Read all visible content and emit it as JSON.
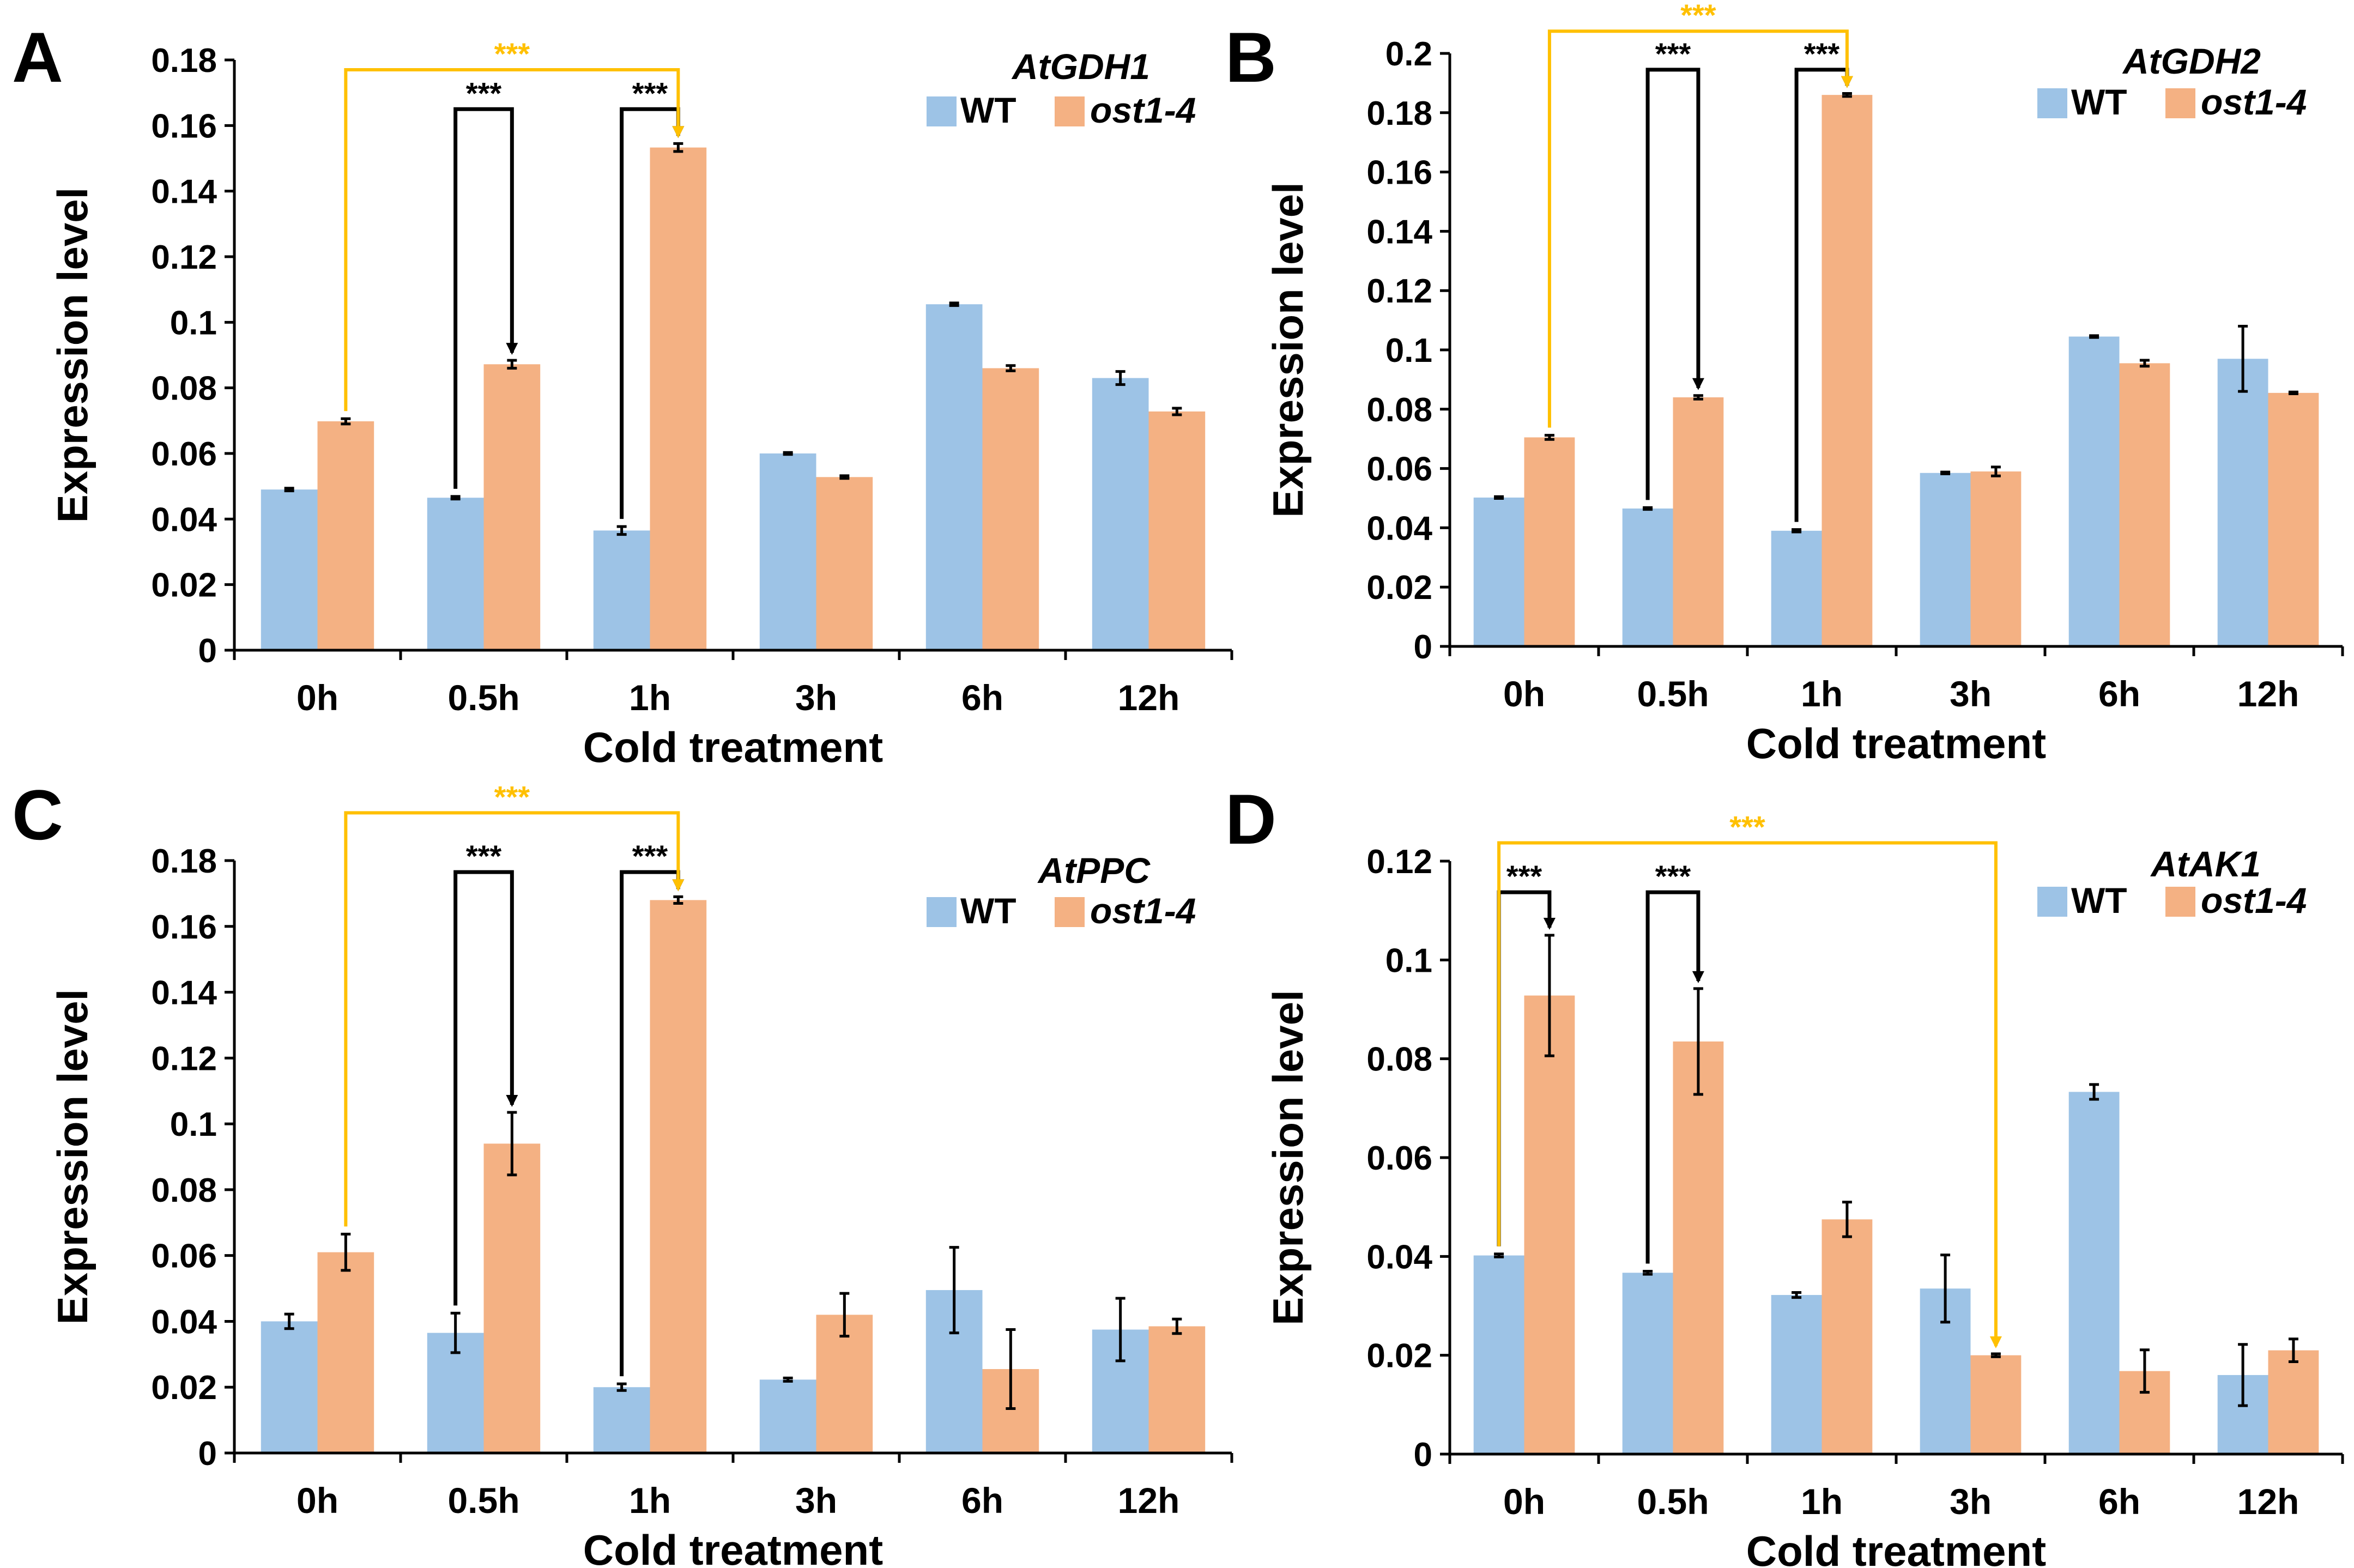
{
  "figure": {
    "colors": {
      "wt": "#9dc3e6",
      "mutant": "#f4b183",
      "comparison_near": "#000000",
      "comparison_far": "#ffc000",
      "axis": "#000000"
    }
  },
  "chart_data": [
    {
      "panel": "A",
      "type": "bar",
      "title": "AtGDH1",
      "xlabel": "Cold treatment",
      "ylabel": "Expression level",
      "categories": [
        "0h",
        "0.5h",
        "1h",
        "3h",
        "6h",
        "12h"
      ],
      "ylim": [
        0,
        0.18
      ],
      "yticks": [
        0,
        0.02,
        0.04,
        0.06,
        0.08,
        0.1,
        0.12,
        0.14,
        0.16,
        0.18
      ],
      "ytick_labels": [
        "0",
        "0.02",
        "0.04",
        "0.06",
        "0.08",
        "0.1",
        "0.12",
        "0.14",
        "0.16",
        "0.18"
      ],
      "series": [
        {
          "name": "WT",
          "values": [
            0.049,
            0.0465,
            0.0365,
            0.06,
            0.1055,
            0.083
          ],
          "errors": [
            0.0004,
            0.0004,
            0.0012,
            0.0003,
            0.0004,
            0.002
          ]
        },
        {
          "name": "ost1-4",
          "values": [
            0.0698,
            0.0872,
            0.1533,
            0.0528,
            0.086,
            0.0728
          ],
          "errors": [
            0.0008,
            0.0012,
            0.0012,
            0.0004,
            0.0008,
            0.001
          ]
        }
      ],
      "legend": {
        "location": "top-right"
      },
      "comparisons": [
        {
          "label": "***",
          "style": "near",
          "from": {
            "category": 1,
            "series": 0
          },
          "to": {
            "category": 1,
            "series": 1
          },
          "top": 0.165
        },
        {
          "label": "***",
          "style": "near",
          "from": {
            "category": 2,
            "series": 0
          },
          "to": {
            "category": 2,
            "series": 1
          },
          "top": 0.165
        },
        {
          "label": "***",
          "style": "far",
          "from": {
            "category": 0,
            "series": 1
          },
          "to": {
            "category": 2,
            "series": 1
          },
          "top": 0.177
        }
      ]
    },
    {
      "panel": "B",
      "type": "bar",
      "title": "AtGDH2",
      "xlabel": "Cold treatment",
      "ylabel": "Expression level",
      "categories": [
        "0h",
        "0.5h",
        "1h",
        "3h",
        "6h",
        "12h"
      ],
      "ylim": [
        0,
        0.2
      ],
      "yticks": [
        0,
        0.02,
        0.04,
        0.06,
        0.08,
        0.1,
        0.12,
        0.14,
        0.16,
        0.18,
        0.2
      ],
      "ytick_labels": [
        "0",
        "0.02",
        "0.04",
        "0.06",
        "0.08",
        "0.1",
        "0.12",
        "0.14",
        "0.16",
        "0.18",
        "0.2"
      ],
      "series": [
        {
          "name": "WT",
          "values": [
            0.0502,
            0.0465,
            0.039,
            0.0585,
            0.1045,
            0.097
          ],
          "errors": [
            0.0003,
            0.0003,
            0.0004,
            0.0003,
            0.0003,
            0.011
          ]
        },
        {
          "name": "ost1-4",
          "values": [
            0.0705,
            0.084,
            0.186,
            0.059,
            0.0955,
            0.0855
          ],
          "errors": [
            0.0007,
            0.0006,
            0.0005,
            0.0015,
            0.001,
            0.0003
          ]
        }
      ],
      "legend": {
        "location": "top-right"
      },
      "comparisons": [
        {
          "label": "***",
          "style": "near",
          "from": {
            "category": 1,
            "series": 0
          },
          "to": {
            "category": 1,
            "series": 1
          },
          "top": 0.1945
        },
        {
          "label": "***",
          "style": "near",
          "from": {
            "category": 2,
            "series": 0
          },
          "to": {
            "category": 2,
            "series": 1
          },
          "top": 0.1945
        },
        {
          "label": "***",
          "style": "far",
          "from": {
            "category": 0,
            "series": 1
          },
          "to": {
            "category": 2,
            "series": 1
          },
          "top": 0.2075
        }
      ]
    },
    {
      "panel": "C",
      "type": "bar",
      "title": "AtPPC",
      "xlabel": "Cold treatment",
      "ylabel": "Expression level",
      "categories": [
        "0h",
        "0.5h",
        "1h",
        "3h",
        "6h",
        "12h"
      ],
      "ylim": [
        0,
        0.18
      ],
      "yticks": [
        0,
        0.02,
        0.04,
        0.06,
        0.08,
        0.1,
        0.12,
        0.14,
        0.16,
        0.18
      ],
      "ytick_labels": [
        "0",
        "0.02",
        "0.04",
        "0.06",
        "0.08",
        "0.1",
        "0.12",
        "0.14",
        "0.16",
        "0.18"
      ],
      "series": [
        {
          "name": "WT",
          "values": [
            0.04,
            0.0365,
            0.02,
            0.0223,
            0.0495,
            0.0375
          ],
          "errors": [
            0.0022,
            0.006,
            0.001,
            0.0005,
            0.013,
            0.0095
          ]
        },
        {
          "name": "ost1-4",
          "values": [
            0.061,
            0.094,
            0.168,
            0.042,
            0.0255,
            0.0385
          ],
          "errors": [
            0.0055,
            0.0095,
            0.001,
            0.0065,
            0.012,
            0.0022
          ]
        }
      ],
      "legend": {
        "location": "top-right"
      },
      "comparisons": [
        {
          "label": "***",
          "style": "near",
          "from": {
            "category": 1,
            "series": 0
          },
          "to": {
            "category": 1,
            "series": 1
          },
          "top": 0.1765
        },
        {
          "label": "***",
          "style": "near",
          "from": {
            "category": 2,
            "series": 0
          },
          "to": {
            "category": 2,
            "series": 1
          },
          "top": 0.1765
        },
        {
          "label": "***",
          "style": "far",
          "from": {
            "category": 0,
            "series": 1
          },
          "to": {
            "category": 2,
            "series": 1
          },
          "top": 0.1945
        }
      ]
    },
    {
      "panel": "D",
      "type": "bar",
      "title": "AtAK1",
      "xlabel": "Cold treatment",
      "ylabel": "Expression level",
      "categories": [
        "0h",
        "0.5h",
        "1h",
        "3h",
        "6h",
        "12h"
      ],
      "ylim": [
        0,
        0.12
      ],
      "yticks": [
        0,
        0.02,
        0.04,
        0.06,
        0.08,
        0.1,
        0.12
      ],
      "ytick_labels": [
        "0",
        "0.02",
        "0.04",
        "0.06",
        "0.08",
        "0.1",
        "0.12"
      ],
      "series": [
        {
          "name": "WT",
          "values": [
            0.0402,
            0.0367,
            0.0322,
            0.0335,
            0.0733,
            0.016
          ],
          "errors": [
            0.0003,
            0.0003,
            0.0005,
            0.0068,
            0.0015,
            0.0062
          ]
        },
        {
          "name": "ost1-4",
          "values": [
            0.0928,
            0.0835,
            0.0475,
            0.02,
            0.0168,
            0.021
          ],
          "errors": [
            0.0122,
            0.0107,
            0.0035,
            0.0003,
            0.0043,
            0.0023
          ]
        }
      ],
      "legend": {
        "location": "top-right"
      },
      "comparisons": [
        {
          "label": "***",
          "style": "near",
          "from": {
            "category": 0,
            "series": 0
          },
          "to": {
            "category": 0,
            "series": 1
          },
          "top": 0.1137
        },
        {
          "label": "***",
          "style": "near",
          "from": {
            "category": 1,
            "series": 0
          },
          "to": {
            "category": 1,
            "series": 1
          },
          "top": 0.1137
        },
        {
          "label": "***",
          "style": "far",
          "from": {
            "category": 0,
            "series": 0
          },
          "to": {
            "category": 3,
            "series": 1
          },
          "top": 0.1237
        }
      ]
    }
  ]
}
